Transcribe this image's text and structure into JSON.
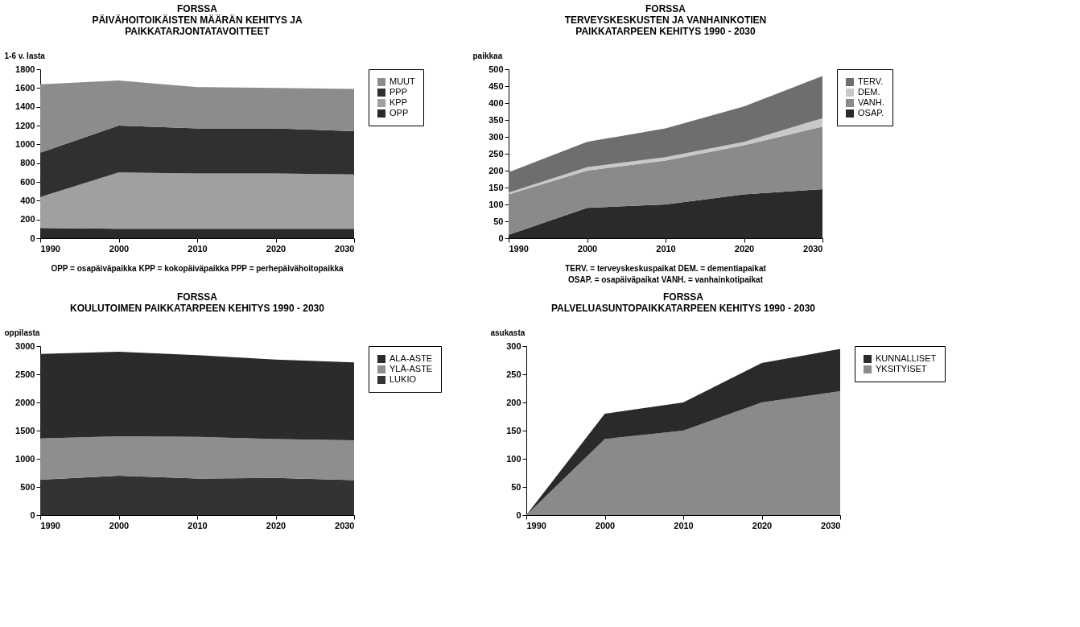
{
  "chart_data": [
    {
      "type": "area",
      "title": "FORSSA\nPÄIVÄHOITOIKÄISTEN MÄÄRÄN KEHITYS JA\nPAIKKATARJONTATAVOITTEET",
      "ylabel": "1-6 v. lasta",
      "x": [
        1990,
        2000,
        2010,
        2020,
        2030
      ],
      "xlim": [
        1990,
        2030
      ],
      "xticks": [
        1990,
        2000,
        2010,
        2020,
        2030
      ],
      "ylim": [
        0,
        1800
      ],
      "yticks": [
        0,
        200,
        400,
        600,
        800,
        1000,
        1200,
        1400,
        1600,
        1800
      ],
      "stacked": true,
      "grid": false,
      "legend": "right",
      "series": [
        {
          "name": "OPP",
          "color": "#2a2a2a",
          "values": [
            110,
            100,
            100,
            100,
            100
          ]
        },
        {
          "name": "KPP",
          "color": "#a0a0a0",
          "values": [
            330,
            600,
            590,
            590,
            580
          ]
        },
        {
          "name": "PPP",
          "color": "#303030",
          "values": [
            470,
            500,
            480,
            480,
            460
          ]
        },
        {
          "name": "MUUT",
          "color": "#8c8c8c",
          "values": [
            730,
            480,
            440,
            430,
            450
          ]
        }
      ],
      "annotations": [
        "OPP = osapäiväpaikka   KPP = kokopäiväpaikka   PPP = perhepäivähoitopaikka"
      ]
    },
    {
      "type": "area",
      "title": "FORSSA\nTERVEYSKESKUSTEN JA VANHAINKOTIEN\nPAIKKATARPEEN KEHITYS 1990 - 2030",
      "ylabel": "paikkaa",
      "x": [
        1990,
        2000,
        2010,
        2020,
        2030
      ],
      "xlim": [
        1990,
        2030
      ],
      "xticks": [
        1990,
        2000,
        2010,
        2020,
        2030
      ],
      "ylim": [
        0,
        500
      ],
      "yticks": [
        0,
        50,
        100,
        150,
        200,
        250,
        300,
        350,
        400,
        450,
        500
      ],
      "stacked": true,
      "grid": false,
      "legend": "right",
      "series": [
        {
          "name": "OSAP.",
          "color": "#2a2a2a",
          "values": [
            10,
            90,
            100,
            130,
            145
          ]
        },
        {
          "name": "VANH.",
          "color": "#8a8a8a",
          "values": [
            120,
            110,
            130,
            145,
            185
          ]
        },
        {
          "name": "DEM.",
          "color": "#c8c8c8",
          "values": [
            5,
            10,
            10,
            10,
            25
          ]
        },
        {
          "name": "TERV.",
          "color": "#6e6e6e",
          "values": [
            60,
            75,
            85,
            105,
            125
          ]
        }
      ],
      "annotations": [
        "TERV. = terveyskeskuspaikat      DEM. = dementiapaikat",
        "OSAP. = osapäiväpaikat      VANH. = vanhainkotipaikat"
      ]
    },
    {
      "type": "area",
      "title": "FORSSA\nKOULUTOIMEN PAIKKATARPEEN KEHITYS 1990 - 2030",
      "ylabel": "oppilasta",
      "x": [
        1990,
        2000,
        2010,
        2020,
        2030
      ],
      "xlim": [
        1990,
        2030
      ],
      "xticks": [
        1990,
        2000,
        2010,
        2020,
        2030
      ],
      "ylim": [
        0,
        3000
      ],
      "yticks": [
        0,
        500,
        1000,
        1500,
        2000,
        2500,
        3000
      ],
      "stacked": true,
      "grid": false,
      "legend": "right",
      "series": [
        {
          "name": "LUKIO",
          "color": "#333333",
          "values": [
            630,
            700,
            650,
            660,
            620
          ]
        },
        {
          "name": "YLÄ-ASTE",
          "color": "#8e8e8e",
          "values": [
            730,
            700,
            740,
            690,
            710
          ]
        },
        {
          "name": "ALA-ASTE",
          "color": "#2b2b2b",
          "values": [
            1500,
            1500,
            1450,
            1410,
            1380
          ]
        }
      ]
    },
    {
      "type": "area",
      "title": "FORSSA\nPALVELUASUNTOPAIKKATARPEEN KEHITYS 1990 - 2030",
      "ylabel": "asukasta",
      "x": [
        1990,
        2000,
        2010,
        2020,
        2030
      ],
      "xlim": [
        1990,
        2030
      ],
      "xticks": [
        1990,
        2000,
        2010,
        2020,
        2030
      ],
      "ylim": [
        0,
        300
      ],
      "yticks": [
        0,
        50,
        100,
        150,
        200,
        250,
        300
      ],
      "stacked": true,
      "grid": false,
      "legend": "right",
      "series": [
        {
          "name": "YKSITYISET",
          "color": "#8a8a8a",
          "values": [
            0,
            135,
            150,
            200,
            220
          ]
        },
        {
          "name": "KUNNALLISET",
          "color": "#2a2a2a",
          "values": [
            0,
            45,
            50,
            70,
            75
          ]
        }
      ]
    }
  ]
}
